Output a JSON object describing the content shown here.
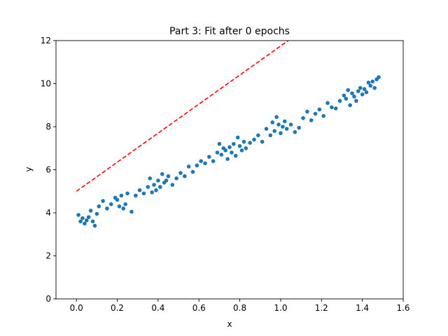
{
  "chart_data": {
    "type": "scatter",
    "title": "Part 3: Fit after 0 epochs",
    "xlabel": "x",
    "ylabel": "y",
    "xlim": [
      -0.1,
      1.6
    ],
    "ylim": [
      0,
      12
    ],
    "xticks": [
      "0.0",
      "0.2",
      "0.4",
      "0.6",
      "0.8",
      "1.0",
      "1.2",
      "1.4",
      "1.6"
    ],
    "yticks": [
      "0",
      "2",
      "4",
      "6",
      "8",
      "10",
      "12"
    ],
    "grid": false,
    "legend": "none",
    "series": [
      {
        "kind": "scatter",
        "color": "#1f77b4",
        "x": [
          0.01,
          0.02,
          0.03,
          0.04,
          0.05,
          0.06,
          0.07,
          0.08,
          0.09,
          0.1,
          0.11,
          0.13,
          0.15,
          0.17,
          0.19,
          0.2,
          0.21,
          0.22,
          0.23,
          0.24,
          0.25,
          0.27,
          0.29,
          0.31,
          0.33,
          0.35,
          0.36,
          0.37,
          0.38,
          0.39,
          0.4,
          0.41,
          0.42,
          0.43,
          0.44,
          0.45,
          0.47,
          0.49,
          0.51,
          0.53,
          0.55,
          0.57,
          0.59,
          0.61,
          0.63,
          0.65,
          0.67,
          0.69,
          0.7,
          0.71,
          0.72,
          0.73,
          0.74,
          0.75,
          0.76,
          0.77,
          0.78,
          0.79,
          0.8,
          0.81,
          0.82,
          0.83,
          0.85,
          0.87,
          0.89,
          0.91,
          0.93,
          0.95,
          0.96,
          0.97,
          0.98,
          0.99,
          1.0,
          1.01,
          1.02,
          1.03,
          1.05,
          1.07,
          1.09,
          1.11,
          1.13,
          1.15,
          1.17,
          1.19,
          1.21,
          1.23,
          1.25,
          1.27,
          1.29,
          1.31,
          1.32,
          1.33,
          1.34,
          1.35,
          1.36,
          1.37,
          1.38,
          1.39,
          1.4,
          1.41,
          1.42,
          1.43,
          1.44,
          1.45,
          1.46,
          1.47,
          1.48
        ],
        "y": [
          3.9,
          3.6,
          3.75,
          3.5,
          3.65,
          3.8,
          4.1,
          3.6,
          3.4,
          3.95,
          4.3,
          4.55,
          4.2,
          4.4,
          4.7,
          4.6,
          4.3,
          4.8,
          4.2,
          4.4,
          4.9,
          4.05,
          4.8,
          5.05,
          4.9,
          5.2,
          5.6,
          4.95,
          5.3,
          5.05,
          5.5,
          5.2,
          5.8,
          5.4,
          5.5,
          5.7,
          5.3,
          5.6,
          5.85,
          5.7,
          6.15,
          5.9,
          6.2,
          6.4,
          6.3,
          6.6,
          6.4,
          6.8,
          7.2,
          6.7,
          7.0,
          6.9,
          6.5,
          7.05,
          6.8,
          7.2,
          6.65,
          7.5,
          7.1,
          6.9,
          7.3,
          7.0,
          7.25,
          7.4,
          7.6,
          7.3,
          7.9,
          7.6,
          8.2,
          7.8,
          8.45,
          8.1,
          7.7,
          8.0,
          8.25,
          7.9,
          8.1,
          7.75,
          7.95,
          8.4,
          8.7,
          8.3,
          8.6,
          8.8,
          8.5,
          9.1,
          8.9,
          8.85,
          9.2,
          9.45,
          9.3,
          9.7,
          9.0,
          9.55,
          9.4,
          9.2,
          9.65,
          9.8,
          9.5,
          9.75,
          9.6,
          10.05,
          9.9,
          10.1,
          9.8,
          10.2,
          10.3
        ]
      },
      {
        "kind": "line",
        "style": "dashed",
        "color": "#ff0000",
        "x": [
          0.0,
          1.6
        ],
        "y": [
          5.0,
          15.8
        ]
      }
    ]
  }
}
